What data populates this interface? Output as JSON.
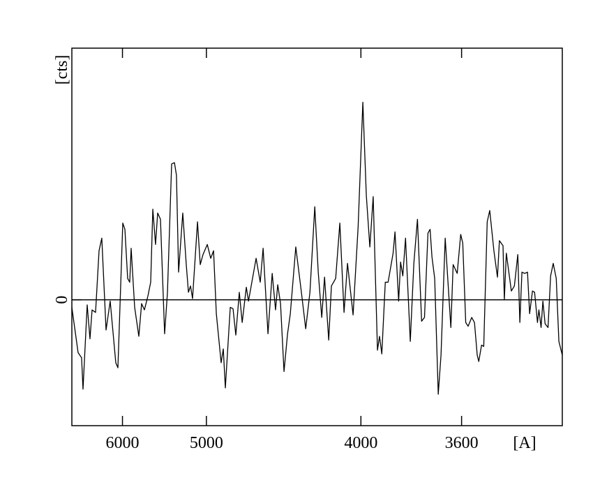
{
  "chart_data": {
    "type": "line",
    "xlabel": "[A]",
    "ylabel": "[cts]",
    "xscale": "inverse-square",
    "color": "#000000",
    "grid": true,
    "xlim": [
      7000,
      3300
    ],
    "xticks": [
      6000,
      5000,
      4000,
      3600
    ],
    "ylim": [
      -1,
      2
    ],
    "yticks": [
      0
    ],
    "x": [
      7000,
      6849,
      6769,
      6737,
      6646,
      6587,
      6544,
      6474,
      6406,
      6354,
      6276,
      6203,
      6108,
      6073,
      5995,
      5962,
      5920,
      5889,
      5868,
      5817,
      5758,
      5720,
      5682,
      5636,
      5600,
      5573,
      5539,
      5513,
      5479,
      5430,
      5397,
      5350,
      5319,
      5297,
      5274,
      5230,
      5194,
      5172,
      5151,
      5131,
      5083,
      5057,
      5031,
      4992,
      4961,
      4936,
      4912,
      4871,
      4853,
      4836,
      4796,
      4774,
      4752,
      4725,
      4703,
      4672,
      4656,
      4601,
      4572,
      4552,
      4519,
      4491,
      4469,
      4455,
      4437,
      4415,
      4393,
      4376,
      4343,
      4310,
      4285,
      4261,
      4234,
      4215,
      4196,
      4181,
      4159,
      4145,
      4123,
      4102,
      4081,
      4064,
      4037,
      4013,
      3991,
      3975,
      3959,
      3944,
      3925,
      3916,
      3906,
      3891,
      3879,
      3858,
      3850,
      3835,
      3827,
      3818,
      3807,
      3788,
      3774,
      3760,
      3744,
      3733,
      3720,
      3712,
      3705,
      3695,
      3682,
      3672,
      3657,
      3637,
      3629,
      3615,
      3603,
      3596,
      3586,
      3578,
      3566,
      3557,
      3548,
      3543,
      3534,
      3527,
      3516,
      3508,
      3495,
      3484,
      3478,
      3467,
      3463,
      3457,
      3442,
      3433,
      3423,
      3417,
      3411,
      3403,
      3395,
      3389,
      3381,
      3375,
      3367,
      3363,
      3357,
      3352,
      3346,
      3338,
      3331,
      3324,
      3316,
      3309,
      3300
    ],
    "values": [
      -0.06,
      -0.42,
      -0.46,
      -0.71,
      -0.04,
      -0.31,
      -0.08,
      -0.1,
      0.39,
      0.49,
      -0.24,
      -0.01,
      -0.5,
      -0.54,
      0.61,
      0.56,
      0.17,
      0.14,
      0.41,
      -0.06,
      -0.29,
      -0.03,
      -0.08,
      0.03,
      0.14,
      0.72,
      0.44,
      0.69,
      0.64,
      -0.27,
      0.06,
      1.08,
      1.09,
      0.99,
      0.22,
      0.69,
      0.28,
      0.06,
      0.11,
      0.01,
      0.62,
      0.28,
      0.36,
      0.44,
      0.33,
      0.39,
      -0.11,
      -0.5,
      -0.39,
      -0.7,
      -0.06,
      -0.07,
      -0.28,
      0.06,
      -0.18,
      0.1,
      -0.01,
      0.33,
      0.14,
      0.41,
      -0.27,
      0.21,
      -0.08,
      0.12,
      -0.03,
      -0.57,
      -0.27,
      -0.11,
      0.42,
      0.06,
      -0.23,
      0.06,
      0.74,
      0.22,
      -0.14,
      0.18,
      -0.32,
      0.11,
      0.17,
      0.61,
      -0.1,
      0.29,
      -0.12,
      0.58,
      1.57,
      0.83,
      0.42,
      0.82,
      -0.4,
      -0.29,
      -0.43,
      0.14,
      0.14,
      0.37,
      0.54,
      -0.01,
      0.3,
      0.19,
      0.49,
      -0.33,
      0.29,
      0.64,
      -0.17,
      -0.14,
      0.53,
      0.56,
      0.34,
      0.17,
      -0.75,
      -0.44,
      0.49,
      -0.22,
      0.28,
      0.21,
      0.52,
      0.45,
      -0.18,
      -0.21,
      -0.14,
      -0.18,
      -0.44,
      -0.49,
      -0.36,
      -0.37,
      0.62,
      0.71,
      0.39,
      0.18,
      0.47,
      0.43,
      0.0,
      0.37,
      0.07,
      0.11,
      0.36,
      -0.18,
      0.22,
      0.21,
      0.22,
      -0.11,
      0.07,
      0.06,
      -0.18,
      -0.08,
      -0.22,
      -0.01,
      -0.19,
      -0.22,
      0.19,
      0.29,
      0.17,
      -0.33,
      -0.44
    ]
  }
}
